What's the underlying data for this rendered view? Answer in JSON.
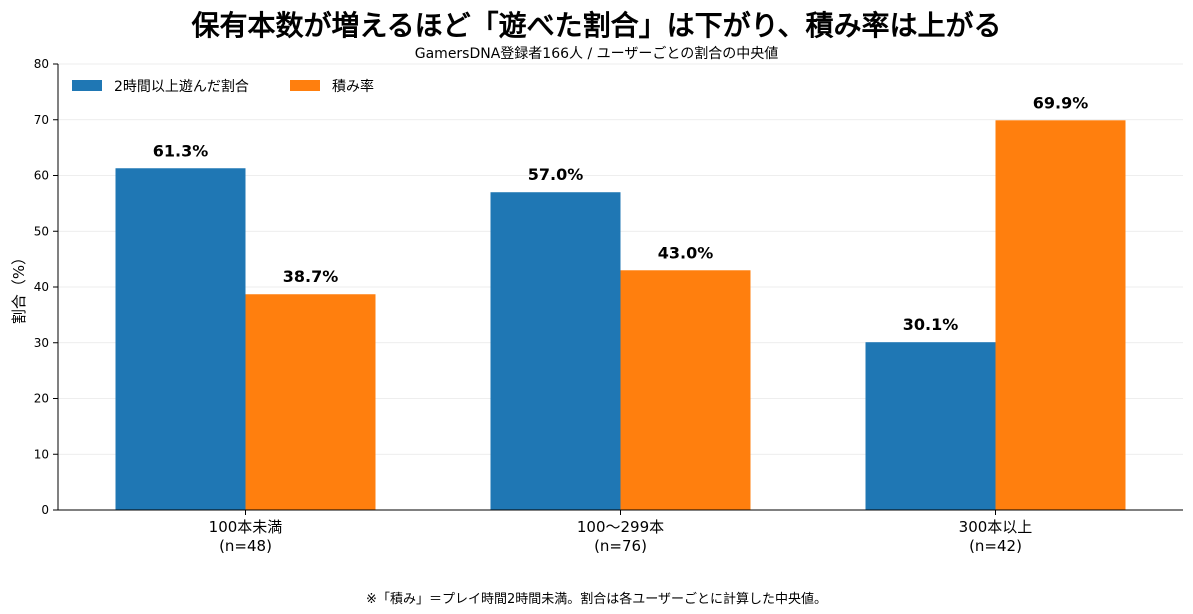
{
  "chart_data": {
    "type": "bar",
    "title": "保有本数が増えるほど「遊べた割合」は下がり、積み率は上がる",
    "subtitle": "GamersDNA登録者166人 / ユーザーごとの割合の中央値",
    "ylabel": "割合（%）",
    "xlabel": "",
    "ylim": [
      0,
      80
    ],
    "yticks": [
      0,
      10,
      20,
      30,
      40,
      50,
      60,
      70,
      80
    ],
    "grid": true,
    "legend_position": "top-left",
    "categories": [
      {
        "line1": "100本未満",
        "line2": "(n=48)"
      },
      {
        "line1": "100〜299本",
        "line2": "(n=76)"
      },
      {
        "line1": "300本以上",
        "line2": "(n=42)"
      }
    ],
    "series": [
      {
        "name": "2時間以上遊んだ割合",
        "color": "#1f77b4",
        "values": [
          61.3,
          57.0,
          30.1
        ],
        "labels": [
          "61.3%",
          "57.0%",
          "30.1%"
        ]
      },
      {
        "name": "積み率",
        "color": "#ff7f0e",
        "values": [
          38.7,
          43.0,
          69.9
        ],
        "labels": [
          "38.7%",
          "43.0%",
          "69.9%"
        ]
      }
    ],
    "footnote": "※「積み」＝プレイ時間2時間未満。割合は各ユーザーごとに計算した中央値。"
  }
}
